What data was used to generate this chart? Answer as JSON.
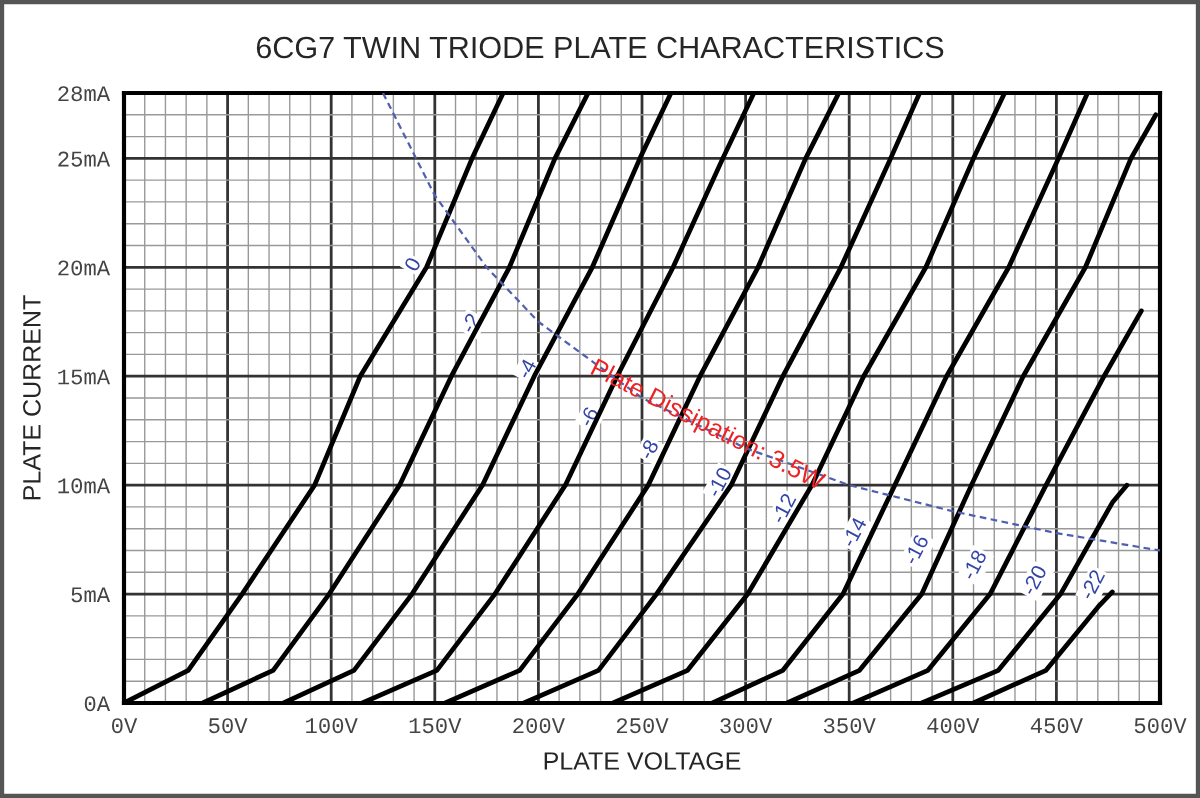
{
  "chart_data": {
    "type": "line",
    "title": "6CG7 TWIN TRIODE PLATE CHARACTERISTICS",
    "xlabel": "PLATE VOLTAGE",
    "ylabel": "PLATE CURRENT",
    "xlim": [
      0,
      500
    ],
    "ylim": [
      0,
      28
    ],
    "xticks": [
      {
        "value": 0,
        "label": "0V"
      },
      {
        "value": 50,
        "label": "50V"
      },
      {
        "value": 100,
        "label": "100V"
      },
      {
        "value": 150,
        "label": "150V"
      },
      {
        "value": 200,
        "label": "200V"
      },
      {
        "value": 250,
        "label": "250V"
      },
      {
        "value": 300,
        "label": "300V"
      },
      {
        "value": 350,
        "label": "350V"
      },
      {
        "value": 400,
        "label": "400V"
      },
      {
        "value": 450,
        "label": "450V"
      },
      {
        "value": 500,
        "label": "500V"
      }
    ],
    "yticks": [
      {
        "value": 0,
        "label": "0A"
      },
      {
        "value": 5,
        "label": "5mA"
      },
      {
        "value": 10,
        "label": "10mA"
      },
      {
        "value": 15,
        "label": "15mA"
      },
      {
        "value": 20,
        "label": "20mA"
      },
      {
        "value": 25,
        "label": "25mA"
      },
      {
        "value": 28,
        "label": "28mA"
      }
    ],
    "grid": true,
    "marker": "none",
    "line_style": "solid",
    "series": [
      {
        "color": "#000000",
        "x": [
          0,
          31,
          57,
          92,
          114,
          146,
          168,
          183
        ],
        "values": [
          0,
          1.5,
          5,
          10,
          15,
          20,
          25,
          28
        ]
      },
      {
        "color": "#000000",
        "x": [
          38,
          72,
          99,
          133,
          158,
          186,
          208,
          224
        ],
        "values": [
          0,
          1.5,
          5,
          10,
          15,
          20,
          25,
          28
        ]
      },
      {
        "color": "#000000",
        "x": [
          77,
          111,
          139,
          173,
          198,
          226,
          249,
          264
        ],
        "values": [
          0,
          1.5,
          5,
          10,
          15,
          20,
          25,
          28
        ]
      },
      {
        "color": "#000000",
        "x": [
          115,
          151,
          179,
          213,
          238,
          265,
          289,
          304
        ],
        "values": [
          0,
          1.5,
          5,
          10,
          15,
          20,
          25,
          28
        ]
      },
      {
        "color": "#000000",
        "x": [
          155,
          191,
          219,
          253,
          278,
          306,
          329,
          345
        ],
        "values": [
          0,
          1.5,
          5,
          10,
          15,
          20,
          25,
          28
        ]
      },
      {
        "color": "#000000",
        "x": [
          193,
          229,
          257,
          293,
          318,
          346,
          370,
          384
        ],
        "values": [
          0,
          1.5,
          5,
          10,
          15,
          20,
          25,
          28
        ]
      },
      {
        "color": "#000000",
        "x": [
          236,
          272,
          301,
          332,
          357,
          387,
          410,
          425
        ],
        "values": [
          0,
          1.5,
          5,
          10,
          15,
          20,
          25,
          28
        ]
      },
      {
        "color": "#000000",
        "x": [
          284,
          318,
          347,
          372,
          397,
          427,
          451,
          465
        ],
        "values": [
          0,
          1.5,
          5,
          10,
          15,
          20,
          25,
          28
        ]
      },
      {
        "color": "#000000",
        "x": [
          320,
          355,
          385,
          409,
          434,
          464,
          486,
          498
        ],
        "values": [
          0,
          1.5,
          5,
          10,
          15,
          20,
          25,
          27
        ]
      },
      {
        "color": "#000000",
        "x": [
          352,
          388,
          418,
          445,
          473,
          491
        ],
        "values": [
          0,
          1.5,
          5,
          10,
          15,
          18
        ]
      },
      {
        "color": "#000000",
        "x": [
          385,
          422,
          452,
          477,
          484
        ],
        "values": [
          0,
          1.5,
          5,
          9.2,
          10
        ]
      },
      {
        "color": "#000000",
        "x": [
          410,
          445,
          470,
          477
        ],
        "values": [
          0,
          1.5,
          4.4,
          5.1
        ]
      },
      {
        "name": "Plate Dissipation: 3.5W",
        "color": "#5060b0",
        "line_style": "dashed",
        "x": [
          125,
          150,
          175,
          200,
          250,
          300,
          350,
          400,
          450,
          500
        ],
        "values": [
          28,
          23.3,
          20,
          17.5,
          14,
          11.7,
          10,
          8.8,
          7.8,
          7
        ]
      }
    ],
    "annotations": [
      {
        "text": "0",
        "x": 140,
        "y": 20.1
      },
      {
        "text": "-2",
        "x": 168,
        "y": 17.4
      },
      {
        "text": "-4",
        "x": 195,
        "y": 15.3
      },
      {
        "text": "-6",
        "x": 225,
        "y": 13.1
      },
      {
        "text": "-8",
        "x": 254,
        "y": 11.6
      },
      {
        "text": "-10",
        "x": 288,
        "y": 10.1
      },
      {
        "text": "-12",
        "x": 319,
        "y": 8.9
      },
      {
        "text": "-14",
        "x": 353,
        "y": 7.8
      },
      {
        "text": "-16",
        "x": 383,
        "y": 7.0
      },
      {
        "text": "-18",
        "x": 411,
        "y": 6.3
      },
      {
        "text": "-20",
        "x": 440,
        "y": 5.6
      },
      {
        "text": "-22",
        "x": 468,
        "y": 5.4
      }
    ]
  }
}
